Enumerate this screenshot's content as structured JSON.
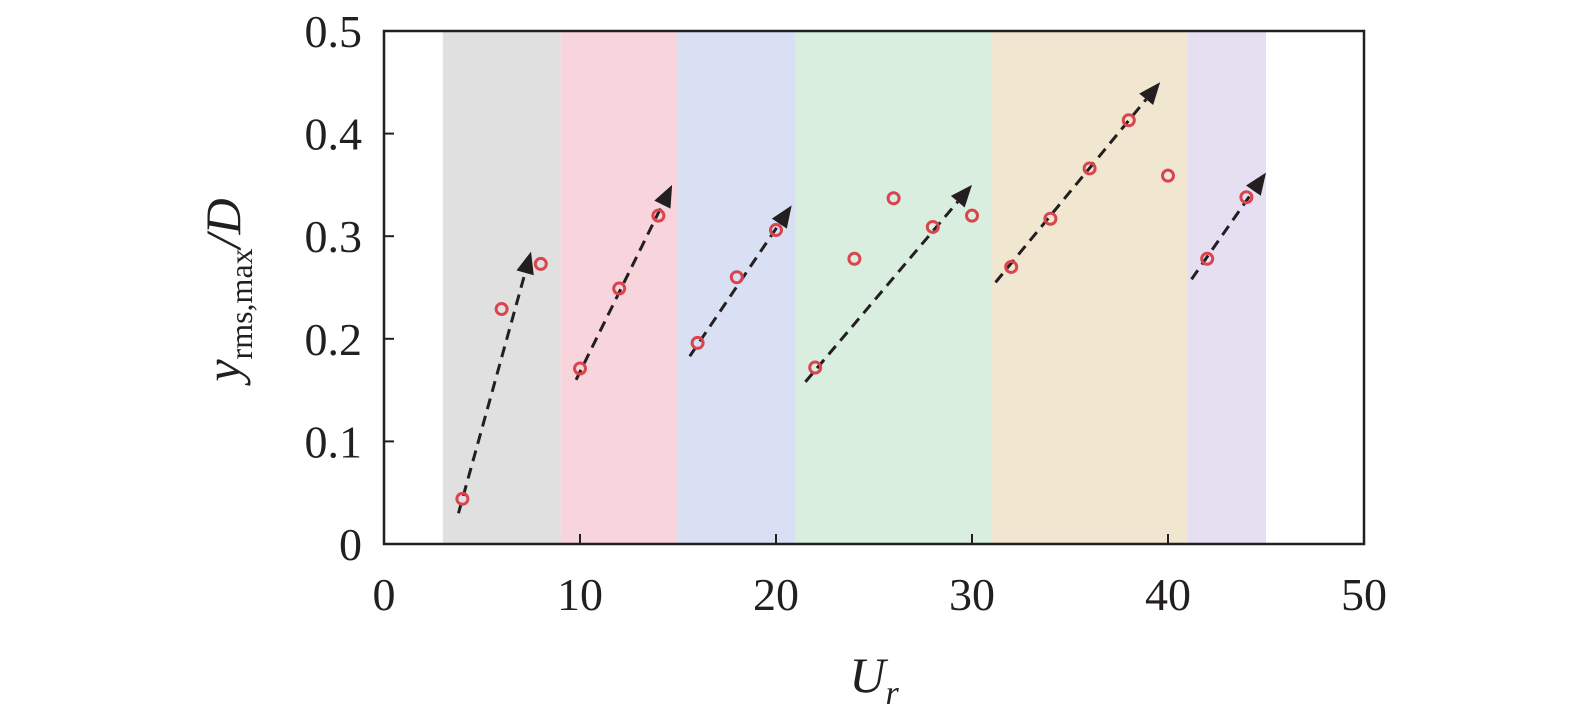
{
  "chart_data": {
    "type": "scatter",
    "title": "",
    "xlabel": {
      "main": "U",
      "sub": "r"
    },
    "ylabel": {
      "main": "y",
      "sub": "rms,max",
      "suffix": "/D"
    },
    "xlim": [
      0,
      50
    ],
    "ylim": [
      0,
      0.5
    ],
    "xticks": [
      0,
      10,
      20,
      30,
      40,
      50
    ],
    "xtick_labels": [
      "0",
      "10",
      "20",
      "30",
      "40",
      "50"
    ],
    "yticks": [
      0,
      0.1,
      0.2,
      0.3,
      0.4,
      0.5
    ],
    "ytick_labels": [
      "0",
      "0.1",
      "0.2",
      "0.3",
      "0.4",
      "0.5"
    ],
    "grid": false,
    "legend": "none",
    "bands": [
      {
        "x": [
          3,
          9
        ],
        "color": "#e0e0e0"
      },
      {
        "x": [
          9,
          15
        ],
        "color": "#f8d5dc"
      },
      {
        "x": [
          15,
          21
        ],
        "color": "#dae0f3"
      },
      {
        "x": [
          21,
          31
        ],
        "color": "#d9eede"
      },
      {
        "x": [
          31,
          41
        ],
        "color": "#f1e6d0"
      },
      {
        "x": [
          41,
          45
        ],
        "color": "#e6dff1"
      }
    ],
    "points": {
      "x": [
        4,
        6,
        8,
        10,
        12,
        14,
        16,
        18,
        20,
        22,
        24,
        26,
        28,
        30,
        32,
        34,
        36,
        38,
        40,
        42,
        44
      ],
      "y": [
        0.044,
        0.229,
        0.273,
        0.171,
        0.249,
        0.32,
        0.196,
        0.26,
        0.306,
        0.172,
        0.278,
        0.337,
        0.309,
        0.32,
        0.27,
        0.317,
        0.366,
        0.413,
        0.359,
        0.278,
        0.338
      ],
      "color": "#d9454f"
    },
    "trend_arrows": [
      {
        "from": [
          3.8,
          0.03
        ],
        "to": [
          7.5,
          0.285
        ]
      },
      {
        "from": [
          9.8,
          0.16
        ],
        "to": [
          14.7,
          0.35
        ]
      },
      {
        "from": [
          15.6,
          0.183
        ],
        "to": [
          20.8,
          0.33
        ]
      },
      {
        "from": [
          21.5,
          0.158
        ],
        "to": [
          30.0,
          0.35
        ]
      },
      {
        "from": [
          31.2,
          0.255
        ],
        "to": [
          39.6,
          0.45
        ]
      },
      {
        "from": [
          41.2,
          0.258
        ],
        "to": [
          45.0,
          0.362
        ]
      }
    ],
    "arrow_color": "#231f20"
  }
}
